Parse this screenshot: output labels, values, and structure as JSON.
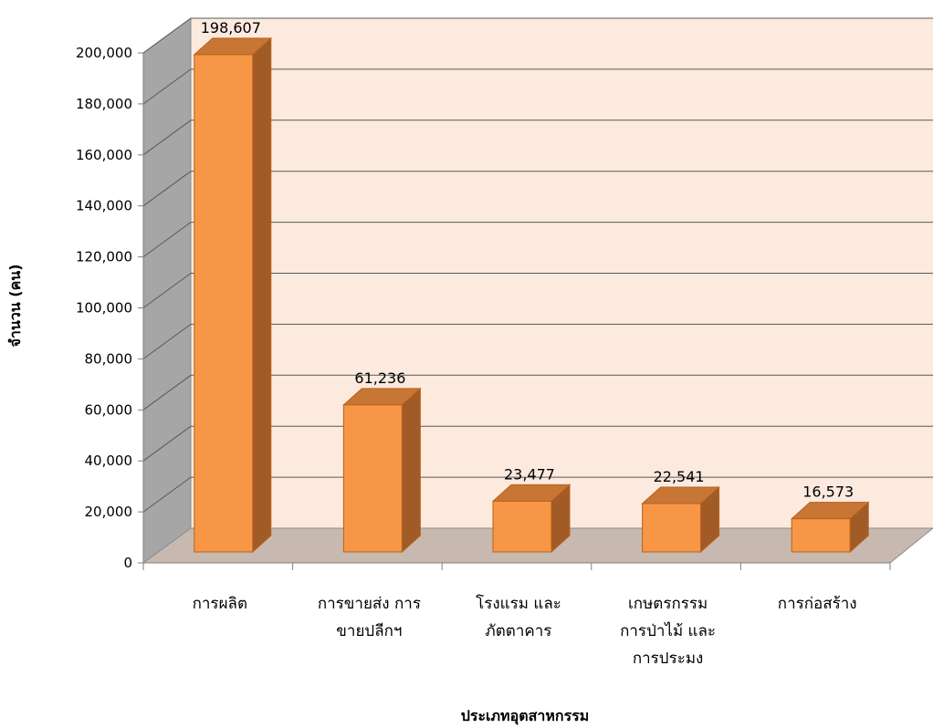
{
  "chart_data": {
    "type": "bar",
    "style": "3d-column",
    "categories": [
      [
        "การผลิต"
      ],
      [
        "การขายส่ง การ",
        "ขายปลีกฯ"
      ],
      [
        "โรงแรม และ",
        "ภัตตาคาร"
      ],
      [
        "เกษตรกรรม",
        "การป่าไม้ และ",
        "การประมง"
      ],
      [
        "การก่อสร้าง"
      ]
    ],
    "values": [
      198607,
      61236,
      23477,
      22541,
      16573
    ],
    "value_labels": [
      "198,607",
      "61,236",
      "23,477",
      "22,541",
      "16,573"
    ],
    "ylabel": "จำนวน (คน)",
    "xlabel": "ประเภทอุตสาหกรรม",
    "ylim": [
      0,
      200000
    ],
    "yticks": [
      0,
      20000,
      40000,
      60000,
      80000,
      100000,
      120000,
      140000,
      160000,
      180000,
      200000
    ],
    "ytick_labels": [
      "0",
      "20,000",
      "40,000",
      "60,000",
      "80,000",
      "100,000",
      "120,000",
      "140,000",
      "160,000",
      "180,000",
      "200,000"
    ],
    "grid": true,
    "legend": "none",
    "colors": {
      "bar_front": "#F79646",
      "bar_top": "#C87635",
      "bar_side": "#A15B27",
      "bar_edge": "#B8621A",
      "back_wall": "#FCEADF",
      "side_wall": "#A6A6A6",
      "floor": "#C7B9B0",
      "gridline": "#595959"
    }
  }
}
